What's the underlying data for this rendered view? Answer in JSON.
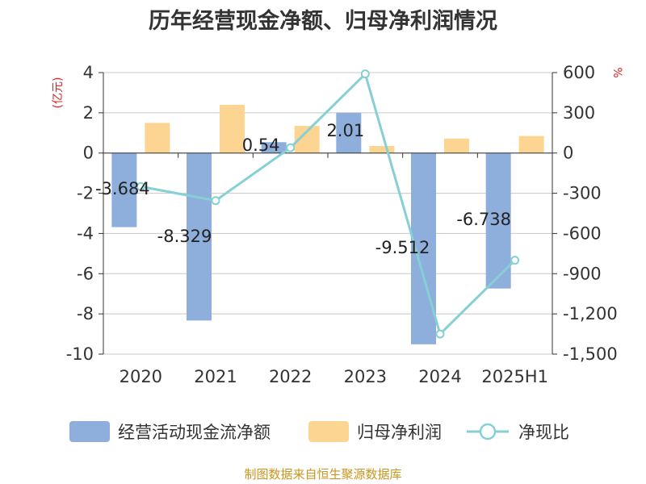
{
  "title": "历年经营现金净额、归母净利润情况",
  "source_note": "制图数据来自恒生聚源数据库",
  "chart_data": {
    "type": "bar",
    "categories": [
      "2020",
      "2021",
      "2022",
      "2023",
      "2024",
      "2025H1"
    ],
    "left_axis": {
      "unit": "(亿元)",
      "min": -10,
      "max": 4,
      "ticks": [
        4,
        2,
        0,
        -2,
        -4,
        -6,
        -8,
        -10
      ]
    },
    "right_axis": {
      "unit": "%",
      "min": -1500,
      "max": 600,
      "ticks": [
        600,
        300,
        0,
        -300,
        -600,
        -900,
        -1200,
        -1500
      ],
      "tick_labels": [
        "600",
        "300",
        "0",
        "-300",
        "-600",
        "-900",
        "-1,200",
        "-1,500"
      ]
    },
    "series": [
      {
        "name": "经营活动现金流净额",
        "type": "bar",
        "axis": "left",
        "color": "#8eaedb",
        "values": [
          -3.684,
          -8.329,
          0.54,
          2.01,
          -9.512,
          -6.738
        ],
        "labels": [
          "-3.684",
          "-8.329",
          "0.54",
          "2.01",
          "-9.512",
          "-6.738"
        ]
      },
      {
        "name": "归母净利润",
        "type": "bar",
        "axis": "left",
        "color": "#fdd592",
        "values": [
          1.5,
          2.4,
          1.35,
          0.35,
          0.72,
          0.85
        ]
      },
      {
        "name": "净现比",
        "type": "line",
        "axis": "right",
        "color": "#86d0d5",
        "values": [
          -250,
          -355,
          40,
          590,
          -1350,
          -800
        ]
      }
    ],
    "grid": true,
    "legend_position": "bottom"
  }
}
